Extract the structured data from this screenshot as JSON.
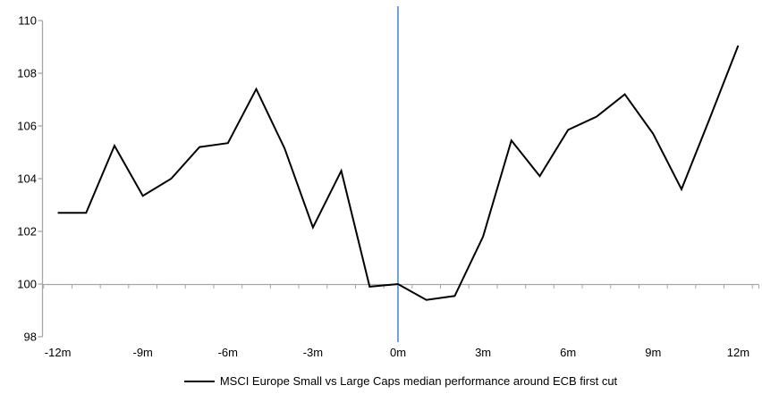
{
  "chart_data": {
    "type": "line",
    "title": "",
    "xlabel": "",
    "ylabel": "",
    "x": [
      -12,
      -11,
      -10,
      -9,
      -8,
      -7,
      -6,
      -5,
      -4,
      -3,
      -2,
      -1,
      0,
      1,
      2,
      3,
      4,
      5,
      6,
      7,
      8,
      9,
      10,
      11,
      12
    ],
    "series": [
      {
        "name": "MSCI Europe Small vs Large Caps median performance around ECB first cut",
        "color": "#000000",
        "values": [
          102.7,
          102.7,
          105.25,
          103.35,
          104.0,
          105.2,
          105.35,
          107.4,
          105.15,
          102.15,
          104.3,
          99.9,
          100.0,
          99.4,
          99.55,
          101.8,
          105.45,
          104.1,
          105.85,
          106.35,
          107.2,
          105.7,
          103.6,
          106.3,
          109.05
        ]
      }
    ],
    "x_axis": {
      "tick_labels": [
        "-12m",
        "-9m",
        "-6m",
        "-3m",
        "0m",
        "3m",
        "6m",
        "9m",
        "12m"
      ],
      "baseline_value": 100,
      "ticks_between_categories": true
    },
    "y_axis": {
      "tick_labels": [
        "98",
        "100",
        "102",
        "104",
        "106",
        "108",
        "110"
      ],
      "ticks": [
        98,
        100,
        102,
        104,
        106,
        108,
        110
      ],
      "min": 98,
      "max": 110.5
    },
    "event_line": {
      "at_x": 0,
      "color": "#74A3D4"
    },
    "legend": {
      "position": "bottom-center",
      "entries": [
        {
          "label": "MSCI Europe Small vs Large Caps median performance around ECB first cut",
          "color": "#000000"
        }
      ]
    },
    "colors": {
      "axis": "#A6A6A6",
      "series": "#000000",
      "tick_text": "#000000",
      "background": "#FFFFFF"
    },
    "grid": "off"
  }
}
